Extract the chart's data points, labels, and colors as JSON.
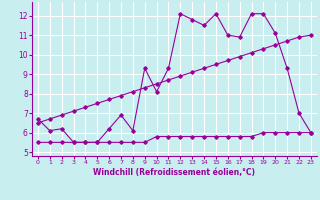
{
  "xlabel": "Windchill (Refroidissement éolien,°C)",
  "bg_color": "#c8eef0",
  "line_color": "#990099",
  "grid_color": "#ffffff",
  "xlim": [
    -0.5,
    23.5
  ],
  "ylim": [
    4.8,
    12.7
  ],
  "yticks": [
    5,
    6,
    7,
    8,
    9,
    10,
    11,
    12
  ],
  "xticks": [
    0,
    1,
    2,
    3,
    4,
    5,
    6,
    7,
    8,
    9,
    10,
    11,
    12,
    13,
    14,
    15,
    16,
    17,
    18,
    19,
    20,
    21,
    22,
    23
  ],
  "series1_x": [
    0,
    1,
    2,
    3,
    4,
    5,
    6,
    7,
    8,
    9,
    10,
    11,
    12,
    13,
    14,
    15,
    16,
    17,
    18,
    19,
    20,
    21,
    22,
    23
  ],
  "series1_y": [
    6.7,
    6.1,
    6.2,
    5.5,
    5.5,
    5.5,
    6.2,
    6.9,
    6.1,
    9.3,
    8.1,
    9.3,
    12.1,
    11.8,
    11.5,
    12.1,
    11.0,
    10.9,
    12.1,
    12.1,
    11.1,
    9.3,
    7.0,
    6.0
  ],
  "series2_x": [
    0,
    1,
    2,
    3,
    4,
    5,
    6,
    7,
    8,
    9,
    10,
    11,
    12,
    13,
    14,
    15,
    16,
    17,
    18,
    19,
    20,
    21,
    22,
    23
  ],
  "series2_y": [
    6.5,
    6.7,
    6.9,
    7.1,
    7.3,
    7.5,
    7.7,
    7.9,
    8.1,
    8.3,
    8.5,
    8.7,
    8.9,
    9.1,
    9.3,
    9.5,
    9.7,
    9.9,
    10.1,
    10.3,
    10.5,
    10.7,
    10.9,
    11.0
  ],
  "series3_x": [
    0,
    1,
    2,
    3,
    4,
    5,
    6,
    7,
    8,
    9,
    10,
    11,
    12,
    13,
    14,
    15,
    16,
    17,
    18,
    19,
    20,
    21,
    22,
    23
  ],
  "series3_y": [
    5.5,
    5.5,
    5.5,
    5.5,
    5.5,
    5.5,
    5.5,
    5.5,
    5.5,
    5.5,
    5.8,
    5.8,
    5.8,
    5.8,
    5.8,
    5.8,
    5.8,
    5.8,
    5.8,
    6.0,
    6.0,
    6.0,
    6.0,
    6.0
  ]
}
